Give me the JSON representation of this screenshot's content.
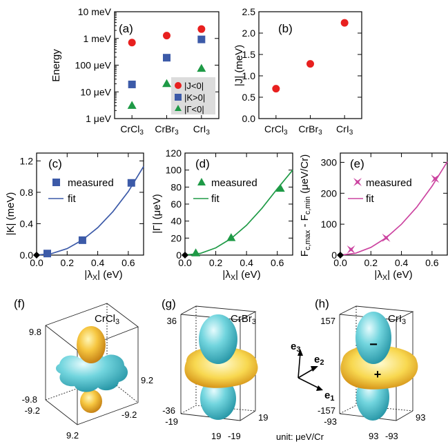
{
  "colors": {
    "red": "#e8201f",
    "blue": "#3c5aa8",
    "green": "#1e9a46",
    "magenta": "#cc44a0",
    "cyan": "#62cfd8",
    "gold": "#f2b232"
  },
  "chart_data": [
    {
      "id": "a",
      "panel_label": "(a)",
      "type": "scatter",
      "yscale": "log",
      "ylabel": "Energy",
      "categories": [
        "CrCl",
        "CrBr",
        "CrI"
      ],
      "category_subscript": "3",
      "ylim_meV": [
        0.001,
        10
      ],
      "yticks": [
        {
          "value": 0.001,
          "label": "1 μeV"
        },
        {
          "value": 0.01,
          "label": "10 μeV"
        },
        {
          "value": 0.1,
          "label": "100 μeV"
        },
        {
          "value": 1,
          "label": "1 meV"
        },
        {
          "value": 10,
          "label": "10 meV"
        }
      ],
      "legend_placement": "bottom-right",
      "series": [
        {
          "name": "|J<0|",
          "marker": "circle",
          "color": "#e8201f",
          "values": [
            0.7,
            1.28,
            2.24
          ]
        },
        {
          "name": "|K>0|",
          "marker": "square",
          "color": "#3c5aa8",
          "values": [
            0.019,
            0.19,
            0.92
          ]
        },
        {
          "name": "|Γ<0|",
          "marker": "triangle",
          "color": "#1e9a46",
          "values": [
            0.0032,
            0.021,
            0.078
          ]
        }
      ]
    },
    {
      "id": "b",
      "panel_label": "(b)",
      "type": "scatter",
      "ylabel": "|J| (meV)",
      "categories": [
        "CrCl",
        "CrBr",
        "CrI"
      ],
      "category_subscript": "3",
      "ylim": [
        0,
        2.5
      ],
      "yticks": [
        "0.0",
        "0.5",
        "1.0",
        "1.5",
        "2.0",
        "2.5"
      ],
      "series": [
        {
          "marker": "circle",
          "color": "#e8201f",
          "values": [
            0.7,
            1.28,
            2.24
          ]
        }
      ]
    },
    {
      "id": "c",
      "panel_label": "(c)",
      "type": "scatter",
      "xlabel": "|λX| (eV)",
      "ylabel": "|K| (meV)",
      "xlim": [
        0,
        0.7
      ],
      "ylim": [
        0,
        1.3
      ],
      "xticks": [
        "0.0",
        "0.2",
        "0.4",
        "0.6"
      ],
      "yticks": [
        "0.0",
        "0.4",
        "0.8",
        "1.2"
      ],
      "legend": [
        {
          "name": "measured"
        },
        {
          "name": "fit"
        }
      ],
      "series": [
        {
          "name": "measured",
          "marker": "square",
          "color": "#3c5aa8",
          "x": [
            0.07,
            0.3,
            0.62
          ],
          "y": [
            0.02,
            0.19,
            0.92
          ]
        },
        {
          "name": "fit",
          "kind": "curve",
          "color": "#3c5aa8",
          "x": [
            0,
            0.1,
            0.2,
            0.3,
            0.4,
            0.5,
            0.6,
            0.7
          ],
          "y": [
            0,
            0.02,
            0.083,
            0.193,
            0.35,
            0.555,
            0.81,
            1.13
          ]
        }
      ],
      "origin_marker": {
        "x": 0,
        "y": 0
      }
    },
    {
      "id": "d",
      "panel_label": "(d)",
      "type": "scatter",
      "xlabel": "|λX| (eV)",
      "ylabel": "|Γ| (μeV)",
      "xlim": [
        0,
        0.7
      ],
      "ylim": [
        0,
        120
      ],
      "xticks": [
        "0.0",
        "0.2",
        "0.4",
        "0.6"
      ],
      "yticks": [
        "0",
        "20",
        "40",
        "60",
        "80",
        "100",
        "120"
      ],
      "legend": [
        {
          "name": "measured"
        },
        {
          "name": "fit"
        }
      ],
      "series": [
        {
          "name": "measured",
          "marker": "triangle",
          "color": "#1e9a46",
          "x": [
            0.07,
            0.3,
            0.62
          ],
          "y": [
            3,
            21,
            79
          ]
        },
        {
          "name": "fit",
          "kind": "curve",
          "color": "#1e9a46",
          "x": [
            0,
            0.1,
            0.2,
            0.3,
            0.4,
            0.5,
            0.6,
            0.7
          ],
          "y": [
            0,
            2,
            8.5,
            19.5,
            35,
            55,
            78,
            100
          ]
        }
      ],
      "origin_marker": {
        "x": 0,
        "y": 0
      }
    },
    {
      "id": "e",
      "panel_label": "(e)",
      "type": "scatter",
      "xlabel": "|λX| (eV)",
      "ylabel": "Fc,max - Fc,min (μeV/Cr)",
      "xlim": [
        0,
        0.7
      ],
      "ylim": [
        0,
        330
      ],
      "xticks": [
        "0.0",
        "0.2",
        "0.4",
        "0.6"
      ],
      "yticks": [
        "0",
        "100",
        "200",
        "300"
      ],
      "legend": [
        {
          "name": "measured"
        },
        {
          "name": "fit"
        }
      ],
      "series": [
        {
          "name": "measured",
          "marker": "star",
          "color": "#cc44a0",
          "x": [
            0.07,
            0.3,
            0.62
          ],
          "y": [
            18,
            56,
            247
          ]
        },
        {
          "name": "fit",
          "kind": "curve",
          "color": "#cc44a0",
          "x": [
            0,
            0.1,
            0.2,
            0.3,
            0.4,
            0.5,
            0.6,
            0.7
          ],
          "y": [
            0,
            6,
            25,
            56,
            100,
            155,
            223,
            302
          ]
        }
      ],
      "origin_marker": {
        "x": 0,
        "y": 0
      }
    }
  ],
  "surfaces": [
    {
      "id": "f",
      "panel_label": "(f)",
      "material": "CrCl",
      "subscript": "3",
      "labels": [
        "9.8",
        "-9.8",
        "-9.2",
        "9.2",
        "-9.2",
        "9.2"
      ]
    },
    {
      "id": "g",
      "panel_label": "(g)",
      "material": "CrBr",
      "subscript": "3",
      "labels": [
        "36",
        "-36",
        "-19",
        "19",
        "19",
        "-19"
      ]
    },
    {
      "id": "h",
      "panel_label": "(h)",
      "material": "CrI",
      "subscript": "3",
      "labels": [
        "157",
        "-157",
        "-93",
        "93",
        "93",
        "-93"
      ],
      "signs": [
        "−",
        "+"
      ]
    }
  ],
  "basis": {
    "e1": "e",
    "e1_sub": "1",
    "e2": "e",
    "e2_sub": "2",
    "e3": "e",
    "e3_sub": "3"
  },
  "unit_note": "unit: μeV/Cr"
}
